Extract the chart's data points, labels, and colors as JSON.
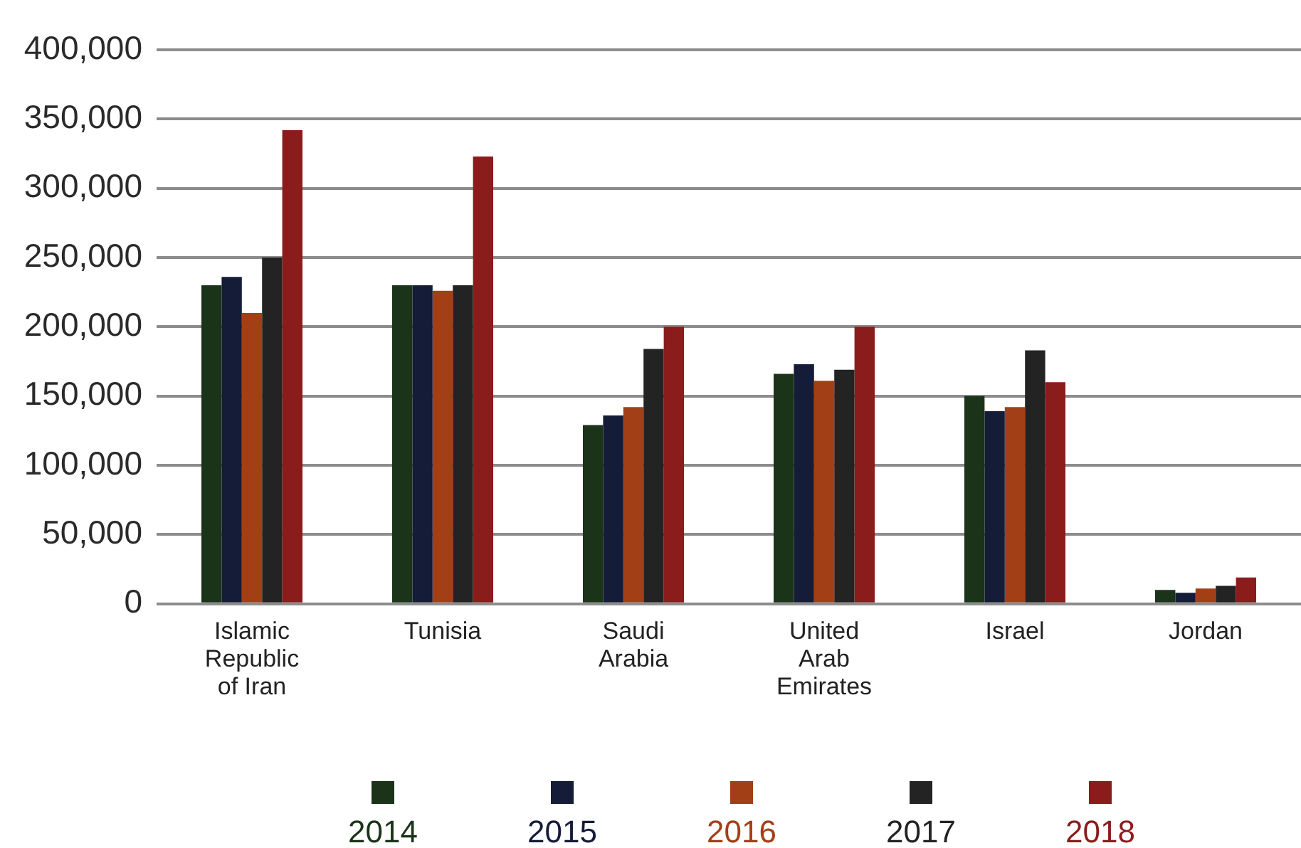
{
  "chart_data": {
    "type": "bar",
    "categories": [
      "Islamic Republic of Iran",
      "Tunisia",
      "Saudi Arabia",
      "United Arab Emirates",
      "Israel",
      "Jordan"
    ],
    "series": [
      {
        "name": "2014",
        "color": "#1a3319",
        "values": [
          230000,
          230000,
          129000,
          166000,
          150000,
          10000
        ]
      },
      {
        "name": "2015",
        "color": "#141c38",
        "values": [
          236000,
          230000,
          136000,
          173000,
          139000,
          8000
        ]
      },
      {
        "name": "2016",
        "color": "#a33f17",
        "values": [
          210000,
          226000,
          142000,
          161000,
          142000,
          11000
        ]
      },
      {
        "name": "2017",
        "color": "#232323",
        "values": [
          250000,
          230000,
          184000,
          169000,
          183000,
          13000
        ]
      },
      {
        "name": "2018",
        "color": "#8b1c1c",
        "values": [
          342000,
          323000,
          200000,
          200000,
          160000,
          19000
        ]
      }
    ],
    "ylim": [
      0,
      400000
    ],
    "yticks": [
      0,
      {
        "value": 50000,
        "label": "50,000"
      },
      {
        "value": 100000,
        "label": "100,000"
      },
      {
        "value": 150000,
        "label": "150,000"
      },
      {
        "value": 200000,
        "label": "200,000"
      },
      {
        "value": 250000,
        "label": "250,000"
      },
      {
        "value": 300000,
        "label": "300,000"
      },
      {
        "value": 350000,
        "label": "350,000"
      },
      {
        "value": 400000,
        "label": "400,000"
      }
    ],
    "grid": "y",
    "legend": "bottom"
  }
}
